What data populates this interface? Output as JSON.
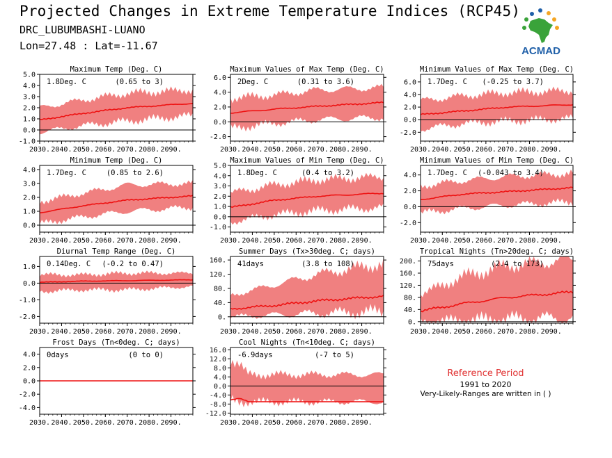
{
  "header": {
    "title": "Projected Changes in Extreme Temperature Indices (RCP45)",
    "location": "DRC_LUBUMBASHI-LUANO",
    "coordinates": "Lon=27.48 : Lat=-11.67"
  },
  "logo": {
    "text": "ACMAD",
    "icon": "africa-sun-logo"
  },
  "reference": {
    "title": "Reference Period",
    "years": "1991 to 2020",
    "note": "Very-Likely-Ranges are written in ( )"
  },
  "colors": {
    "band": "#f08080",
    "line": "#ee1111",
    "accent": "#e03030",
    "logo_blue": "#1f5fa8",
    "logo_green": "#3aa33a",
    "logo_orange": "#f5a623"
  },
  "chart_data": [
    {
      "type": "area",
      "title": "Maximum Temp (Deg. C)",
      "value_text": "1.8Deg. C",
      "range_text": "(0.65 to 3)",
      "x_ticks": [
        "2030.",
        "2040.",
        "2050.",
        "2060.",
        "2070.",
        "2080.",
        "2090."
      ],
      "xlim": [
        2030,
        2100
      ],
      "ylim": [
        -1.0,
        5.0
      ],
      "y_ticks": [
        "5.0",
        "4.0",
        "3.0",
        "2.0",
        "1.0",
        "0.0",
        "-1.0"
      ],
      "y_tick_values": [
        5,
        4,
        3,
        2,
        1,
        0,
        -1
      ],
      "x": [
        2030,
        2050,
        2070,
        2100
      ],
      "median": [
        0.9,
        1.5,
        2.0,
        2.4
      ],
      "low": [
        -0.2,
        0.4,
        0.8,
        1.3
      ],
      "high": [
        2.0,
        2.7,
        3.3,
        3.6
      ]
    },
    {
      "type": "area",
      "title": "Maximum Values of Max Temp (Deg. C)",
      "value_text": "2Deg. C",
      "range_text": "(0.31 to 3.6)",
      "x_ticks": [
        "2030.",
        "2040.",
        "2050.",
        "2060.",
        "2070.",
        "2080.",
        "2090."
      ],
      "xlim": [
        2030,
        2100
      ],
      "ylim": [
        -2.6,
        6.4
      ],
      "y_ticks": [
        "6.0",
        "4.0",
        "2.0",
        "0.0",
        "-2.0"
      ],
      "y_tick_values": [
        6,
        4,
        2,
        0,
        -2
      ],
      "x": [
        2030,
        2050,
        2070,
        2100
      ],
      "median": [
        1.2,
        1.7,
        2.1,
        2.6
      ],
      "low": [
        -0.9,
        -0.2,
        0.3,
        0.6
      ],
      "high": [
        3.2,
        3.6,
        4.3,
        4.6
      ]
    },
    {
      "type": "area",
      "title": "Minimum Values of Max Temp (Deg. C)",
      "value_text": "1.7Deg. C",
      "range_text": "(-0.25 to 3.7)",
      "x_ticks": [
        "2030.",
        "2040.",
        "2050.",
        "2060.",
        "2070.",
        "2080.",
        "2090."
      ],
      "xlim": [
        2030,
        2100
      ],
      "ylim": [
        -3.4,
        7.2
      ],
      "y_ticks": [
        "6.0",
        "4.0",
        "2.0",
        "0.0",
        "-2.0"
      ],
      "y_tick_values": [
        6,
        4,
        2,
        0,
        -2
      ],
      "x": [
        2030,
        2050,
        2070,
        2100
      ],
      "median": [
        0.8,
        1.4,
        2.0,
        2.4
      ],
      "low": [
        -1.5,
        -0.6,
        -0.2,
        0.2
      ],
      "high": [
        3.0,
        3.8,
        4.3,
        4.6
      ]
    },
    {
      "type": "area",
      "title": "Minimum Temp (Deg. C)",
      "value_text": "1.7Deg. C",
      "range_text": "(0.85 to 2.6)",
      "x_ticks": [
        "2030.",
        "2040.",
        "2050.",
        "2060.",
        "2070.",
        "2080.",
        "2090."
      ],
      "xlim": [
        2030,
        2100
      ],
      "ylim": [
        -0.5,
        4.3
      ],
      "y_ticks": [
        "4.0",
        "3.0",
        "2.0",
        "1.0",
        "0.0"
      ],
      "y_tick_values": [
        4,
        3,
        2,
        1,
        0
      ],
      "x": [
        2030,
        2050,
        2070,
        2100
      ],
      "median": [
        0.9,
        1.4,
        1.8,
        2.1
      ],
      "low": [
        0.1,
        0.6,
        1.0,
        1.3
      ],
      "high": [
        1.7,
        2.3,
        2.9,
        3.0
      ]
    },
    {
      "type": "area",
      "title": "Maximum Values of Min Temp (Deg. C)",
      "value_text": "1.8Deg. C",
      "range_text": "(0.4 to 3.2)",
      "x_ticks": [
        "2030.",
        "2040.",
        "2050.",
        "2060.",
        "2070.",
        "2080.",
        "2090."
      ],
      "xlim": [
        2030,
        2100
      ],
      "ylim": [
        -1.5,
        5.0
      ],
      "y_ticks": [
        "5.0",
        "4.0",
        "3.0",
        "2.0",
        "1.0",
        "0.0",
        "-1.0"
      ],
      "y_tick_values": [
        5,
        4,
        3,
        2,
        1,
        0,
        -1
      ],
      "x": [
        2030,
        2050,
        2070,
        2100
      ],
      "median": [
        0.9,
        1.6,
        2.0,
        2.3
      ],
      "low": [
        -0.5,
        0.2,
        0.6,
        0.9
      ],
      "high": [
        2.3,
        3.1,
        3.6,
        3.9
      ]
    },
    {
      "type": "area",
      "title": "Minimum Values of Min Temp (Deg. C)",
      "value_text": "1.7Deg. C",
      "range_text": "(-0.043 to 3.4)",
      "x_ticks": [
        "2030.",
        "2040.",
        "2050.",
        "2060.",
        "2070.",
        "2080.",
        "2090."
      ],
      "xlim": [
        2030,
        2100
      ],
      "ylim": [
        -3.2,
        5.2
      ],
      "y_ticks": [
        "4.0",
        "2.0",
        "0.0",
        "-2.0"
      ],
      "y_tick_values": [
        4,
        2,
        0,
        -2
      ],
      "x": [
        2030,
        2050,
        2070,
        2100
      ],
      "median": [
        0.9,
        1.6,
        1.9,
        2.4
      ],
      "low": [
        -0.8,
        -0.2,
        0.2,
        0.6
      ],
      "high": [
        2.6,
        3.3,
        3.8,
        4.2
      ]
    },
    {
      "type": "area",
      "title": "Diurnal Temp Range (Deg. C)",
      "value_text": "0.14Deg. C",
      "range_text": "(-0.2 to 0.47)",
      "x_ticks": [
        "2030.",
        "2040.",
        "2050.",
        "2060.",
        "2070.",
        "2080.",
        "2090."
      ],
      "xlim": [
        2030,
        2100
      ],
      "ylim": [
        -2.4,
        1.6
      ],
      "y_ticks": [
        "1.0",
        "0.0",
        "-1.0",
        "-2.0"
      ],
      "y_tick_values": [
        1,
        0,
        -1,
        -2
      ],
      "x": [
        2030,
        2050,
        2070,
        2100
      ],
      "median": [
        0.05,
        0.12,
        0.15,
        0.2
      ],
      "low": [
        -0.5,
        -0.4,
        -0.4,
        -0.2
      ],
      "high": [
        0.5,
        0.5,
        0.6,
        0.6
      ]
    },
    {
      "type": "area",
      "title": "Summer Days (Tx>30deg. C; days)",
      "value_text": "41days",
      "range_text": "(3.8 to 108)",
      "x_ticks": [
        "2030.",
        "2040.",
        "2050.",
        "2060.",
        "2070.",
        "2080.",
        "2090."
      ],
      "xlim": [
        2030,
        2100
      ],
      "ylim": [
        -18,
        170
      ],
      "y_ticks": [
        "160.",
        "120.",
        "80.",
        "40.",
        "0."
      ],
      "y_tick_values": [
        160,
        120,
        80,
        40,
        0
      ],
      "x": [
        2030,
        2050,
        2070,
        2100
      ],
      "median": [
        22,
        32,
        45,
        58
      ],
      "low": [
        0,
        5,
        10,
        15
      ],
      "high": [
        60,
        90,
        120,
        150
      ]
    },
    {
      "type": "area",
      "title": "Tropical Nights (Tn>20deg. C; days)",
      "value_text": "75days",
      "range_text": "(2.4 to 173)",
      "x_ticks": [
        "2030.",
        "2040.",
        "2050.",
        "2060.",
        "2070.",
        "2080.",
        "2090."
      ],
      "xlim": [
        2030,
        2100
      ],
      "ylim": [
        -5,
        215
      ],
      "y_ticks": [
        "200.",
        "160.",
        "120.",
        "80.",
        "40.",
        "0."
      ],
      "y_tick_values": [
        200,
        160,
        120,
        80,
        40,
        0
      ],
      "x": [
        2030,
        2050,
        2070,
        2100
      ],
      "median": [
        35,
        60,
        80,
        98
      ],
      "low": [
        0,
        5,
        10,
        12
      ],
      "high": [
        90,
        150,
        185,
        205
      ]
    },
    {
      "type": "area",
      "title": "Frost Days (Tn<0deg. C; days)",
      "value_text": "0days",
      "range_text": "(0 to 0)",
      "x_ticks": [
        "2030.",
        "2040.",
        "2050.",
        "2060.",
        "2070.",
        "2080.",
        "2090."
      ],
      "xlim": [
        2030,
        2100
      ],
      "ylim": [
        -5,
        5
      ],
      "y_ticks": [
        "4.0",
        "2.0",
        "0.0",
        "-2.0",
        "-4.0"
      ],
      "y_tick_values": [
        4,
        2,
        0,
        -2,
        -4
      ],
      "x": [
        2030,
        2100
      ],
      "median": [
        0,
        0
      ],
      "low": [
        0,
        0
      ],
      "high": [
        0,
        0
      ]
    },
    {
      "type": "area",
      "title": "Cool Nights (Tn<10deg. C; days)",
      "value_text": "-6.9days",
      "range_text": "(-7 to 5)",
      "x_ticks": [
        "2030.",
        "2040.",
        "2050.",
        "2060.",
        "2070.",
        "2080.",
        "2090."
      ],
      "xlim": [
        2030,
        2100
      ],
      "ylim": [
        -12.5,
        17
      ],
      "y_ticks": [
        "16.0",
        "12.0",
        "8.0",
        "4.0",
        "0.0",
        "-4.0",
        "-8.0",
        "-12.0"
      ],
      "y_tick_values": [
        16,
        12,
        8,
        4,
        0,
        -4,
        -8,
        -12
      ],
      "x": [
        2030,
        2034,
        2038,
        2100
      ],
      "median": [
        -6.0,
        -5.5,
        -7.0,
        -7.0
      ],
      "low": [
        -7.0,
        -7.0,
        -7.0,
        -7.0
      ],
      "high": [
        12.0,
        10.0,
        5.0,
        5.0
      ]
    }
  ]
}
